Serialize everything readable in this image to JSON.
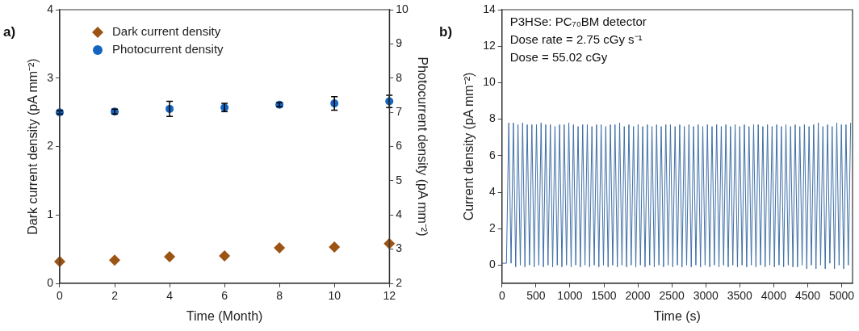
{
  "chart_data": [
    {
      "type": "scatter",
      "xlabel": "Time (Month)",
      "ylabel": "Dark current density (pA mm⁻²)",
      "y2label": "Photocurrent density (pA mm⁻²)",
      "annotations": [
        "a)"
      ],
      "x": [
        0,
        2,
        4,
        6,
        8,
        10,
        12
      ],
      "xlim": [
        0,
        12
      ],
      "xticks": [
        0,
        2,
        4,
        6,
        8,
        10,
        12
      ],
      "ylim": [
        0,
        4
      ],
      "yticks": [
        0,
        1,
        2,
        3,
        4
      ],
      "y2lim": [
        2,
        10
      ],
      "y2ticks": [
        2,
        3,
        4,
        5,
        6,
        7,
        8,
        9,
        10
      ],
      "legend": "top left",
      "series": [
        {
          "name": "Dark current density",
          "color": "#9c5414",
          "marker": "diamond",
          "values": [
            0.32,
            0.34,
            0.39,
            0.4,
            0.52,
            0.53,
            0.58
          ]
        },
        {
          "name": "Photocurrent density",
          "color": "#1565c0",
          "marker": "circle",
          "axis": "y2",
          "values": [
            7.0,
            7.02,
            7.1,
            7.14,
            7.22,
            7.26,
            7.32
          ],
          "errors": [
            0.05,
            0.07,
            0.22,
            0.12,
            0.06,
            0.2,
            0.18
          ]
        }
      ]
    },
    {
      "type": "line",
      "xlabel": "Time (s)",
      "ylabel": "Current density (pA mm⁻²)",
      "annotations": [
        "b)",
        "P3HSe: PC₇₀BM detector",
        "Dose rate = 2.75 cGy s⁻¹",
        "Dose = 55.02 cGy"
      ],
      "xlim": [
        0,
        5160
      ],
      "xticks": [
        0,
        500,
        1000,
        1500,
        2000,
        2500,
        3000,
        3500,
        4000,
        4500,
        5000
      ],
      "ylim": [
        -1,
        14
      ],
      "yticks": [
        0,
        2,
        4,
        6,
        8,
        10,
        12,
        14
      ],
      "marker": "none",
      "series": [
        {
          "color": "#3f6fa6",
          "x": [
            0,
            66,
            100,
            134,
            168,
            202,
            236,
            270,
            304,
            338,
            372,
            406,
            440,
            474,
            508,
            542,
            576,
            610,
            644,
            678,
            712,
            746,
            780,
            814,
            848,
            882,
            916,
            950,
            984,
            1018,
            1052,
            1086,
            1120,
            1154,
            1188,
            1222,
            1256,
            1290,
            1324,
            1358,
            1392,
            1426,
            1460,
            1494,
            1528,
            1562,
            1596,
            1630,
            1664,
            1698,
            1732,
            1766,
            1800,
            1834,
            1868,
            1902,
            1936,
            1970,
            2004,
            2038,
            2072,
            2106,
            2140,
            2174,
            2208,
            2242,
            2276,
            2310,
            2344,
            2378,
            2412,
            2446,
            2480,
            2514,
            2548,
            2582,
            2616,
            2650,
            2684,
            2718,
            2752,
            2786,
            2820,
            2854,
            2888,
            2922,
            2956,
            2990,
            3024,
            3058,
            3092,
            3126,
            3160,
            3194,
            3228,
            3262,
            3296,
            3330,
            3364,
            3398,
            3432,
            3466,
            3500,
            3534,
            3568,
            3602,
            3636,
            3670,
            3704,
            3738,
            3772,
            3806,
            3840,
            3874,
            3908,
            3942,
            3976,
            4010,
            4044,
            4078,
            4112,
            4146,
            4180,
            4214,
            4248,
            4282,
            4316,
            4350,
            4384,
            4418,
            4452,
            4486,
            4520,
            4554,
            4588,
            4622,
            4656,
            4690,
            4724,
            4758,
            4792,
            4826,
            4860,
            4894,
            4928,
            4962,
            4996,
            5030,
            5064,
            5098,
            5132
          ],
          "values": [
            0.1,
            0.1,
            7.8,
            0.1,
            7.8,
            -0.1,
            7.7,
            0,
            7.8,
            -0.1,
            7.7,
            0,
            7.7,
            -0.1,
            7.7,
            0,
            7.8,
            -0.1,
            7.7,
            0,
            7.7,
            -0.1,
            7.6,
            0,
            7.7,
            -0.1,
            7.7,
            0,
            7.8,
            -0.1,
            7.7,
            0,
            7.6,
            -0.1,
            7.7,
            0,
            7.7,
            -0.1,
            7.6,
            0,
            7.7,
            -0.1,
            7.7,
            0,
            7.6,
            -0.1,
            7.7,
            0,
            7.7,
            -0.1,
            7.8,
            0,
            7.6,
            -0.1,
            7.7,
            0,
            7.6,
            -0.1,
            7.7,
            0,
            7.6,
            -0.1,
            7.7,
            0,
            7.6,
            -0.1,
            7.7,
            0,
            7.6,
            -0.1,
            7.7,
            0,
            7.7,
            -0.1,
            7.6,
            0,
            7.7,
            -0.1,
            7.6,
            0,
            7.7,
            -0.1,
            7.6,
            0,
            7.7,
            -0.1,
            7.6,
            0,
            7.7,
            -0.1,
            7.6,
            0,
            7.7,
            -0.1,
            7.6,
            0,
            7.7,
            -0.1,
            7.6,
            0,
            7.7,
            -0.1,
            7.6,
            0,
            7.7,
            -0.1,
            7.6,
            0,
            7.7,
            -0.1,
            7.7,
            0,
            7.6,
            -0.1,
            7.7,
            0,
            7.6,
            -0.1,
            7.7,
            0,
            7.6,
            -0.1,
            7.7,
            0,
            7.6,
            -0.1,
            7.7,
            -0.1,
            7.6,
            0,
            7.7,
            -0.2,
            7.6,
            0,
            7.7,
            -0.2,
            7.8,
            0,
            7.6,
            -0.2,
            7.7,
            0.1,
            7.6,
            -0.2,
            7.8,
            0,
            7.7,
            -0.2,
            7.7,
            0,
            7.8
          ]
        }
      ]
    }
  ]
}
